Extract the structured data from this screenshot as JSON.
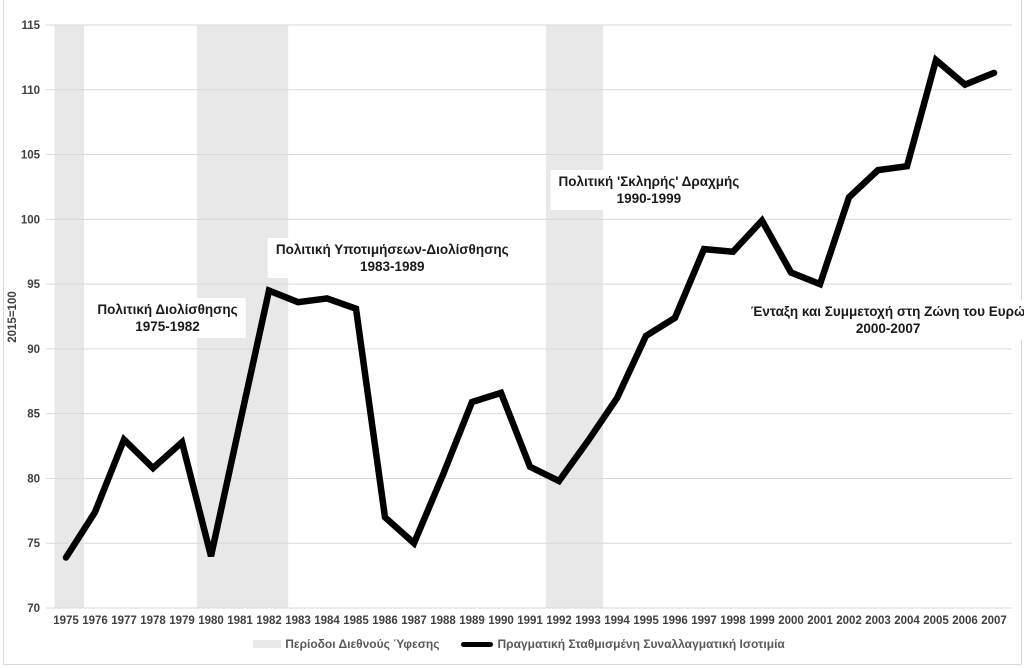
{
  "figure": {
    "y_axis_title": "2015=100",
    "colors": {
      "background": "#ffffff",
      "line": "#000000",
      "recession_band": "#e8e8e8",
      "gridline": "#d9d9d9",
      "border": "#d9d9d9",
      "tick_text": "#404040",
      "legend_text": "#595959",
      "annotation_text": "#1a1a1a"
    }
  },
  "legend": {
    "items": [
      {
        "swatch": "band",
        "label": "Περίοδοι Διεθνούς Ύφεσης"
      },
      {
        "swatch": "line",
        "label": "Πραγματική Σταθμισμένη Συναλλαγματική Ισοτιμία"
      }
    ]
  },
  "chart_data": {
    "type": "line",
    "title": "",
    "xlabel": "",
    "ylabel": "2015=100",
    "ylim": [
      70,
      115
    ],
    "ytick_step": 5,
    "grid": true,
    "legend_position": "bottom",
    "x": [
      1975,
      1976,
      1977,
      1978,
      1979,
      1980,
      1981,
      1982,
      1983,
      1984,
      1985,
      1986,
      1987,
      1988,
      1989,
      1990,
      1991,
      1992,
      1993,
      1994,
      1995,
      1996,
      1997,
      1998,
      1999,
      2000,
      2001,
      2002,
      2003,
      2004,
      2005,
      2006,
      2007
    ],
    "series": [
      {
        "name": "Πραγματική Σταθμισμένη Συναλλαγματική Ισοτιμία",
        "color": "#000000",
        "values": [
          73.9,
          77.4,
          83.0,
          80.8,
          82.8,
          74.0,
          84.3,
          94.5,
          93.6,
          93.9,
          93.1,
          77.0,
          75.0,
          80.3,
          85.9,
          86.6,
          80.9,
          79.8,
          82.9,
          86.2,
          91.0,
          92.4,
          97.7,
          97.5,
          99.9,
          95.9,
          95.0,
          101.7,
          103.8,
          104.1,
          112.3,
          110.4,
          111.3
        ]
      }
    ],
    "recession_bands": [
      {
        "label": "Περίοδοι Διεθνούς Ύφεσης",
        "from_year": 1974.6,
        "to_year": 1975.62
      },
      {
        "label": "Περίοδοι Διεθνούς Ύφεσης",
        "from_year": 1979.52,
        "to_year": 1982.66
      },
      {
        "label": "Περίοδοι Διεθνούς Ύφεσης",
        "from_year": 1991.55,
        "to_year": 1993.52
      }
    ],
    "annotations": [
      {
        "line1": "Πολιτική Διολίσθησης",
        "line2": "1975-1982",
        "x_year": 1978.5,
        "y_value": 92.4
      },
      {
        "line1": "Πολιτική Υποτιμήσεων-Διολίσθησης",
        "line2": "1983-1989",
        "x_year": 1986.25,
        "y_value": 97.0
      },
      {
        "line1": "Πολιτική 'Σκληρής' Δραχμής",
        "line2": "1990-1999",
        "x_year": 1995.1,
        "y_value": 102.3
      },
      {
        "line1": "Ένταξη και Συμμετοχή στη Ζώνη του Ευρώ",
        "line2": "2000-2007",
        "x_year": 2003.35,
        "y_value": 92.2
      }
    ]
  }
}
